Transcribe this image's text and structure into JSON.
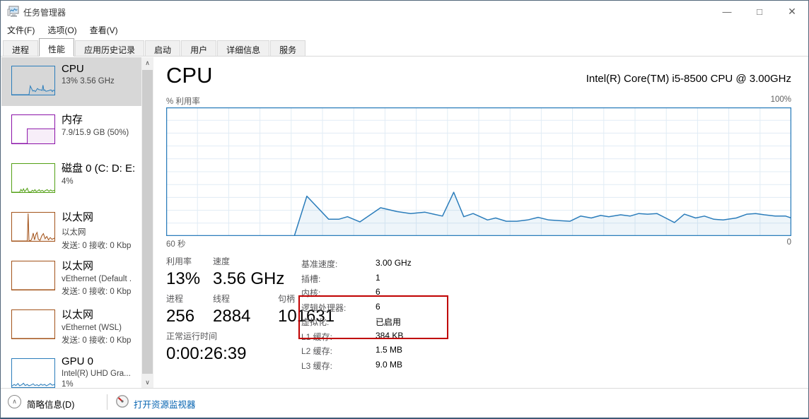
{
  "window": {
    "title": "任务管理器"
  },
  "icons": {
    "minimize": "—",
    "maximize": "□",
    "close": "✕",
    "scroll_up": "∧",
    "scroll_down": "∨",
    "collapse": "∧"
  },
  "menu": {
    "items": [
      {
        "label": "文件(F)"
      },
      {
        "label": "选项(O)"
      },
      {
        "label": "查看(V)"
      }
    ]
  },
  "tabs": {
    "items": [
      {
        "label": "进程",
        "active": false
      },
      {
        "label": "性能",
        "active": true
      },
      {
        "label": "应用历史记录",
        "active": false
      },
      {
        "label": "启动",
        "active": false
      },
      {
        "label": "用户",
        "active": false
      },
      {
        "label": "详细信息",
        "active": false
      },
      {
        "label": "服务",
        "active": false
      }
    ]
  },
  "sidebar": {
    "items": [
      {
        "title": "CPU",
        "lines": [
          "13% 3.56 GHz"
        ],
        "color": "#2b7dbb",
        "selected": true,
        "spark": [
          [
            0,
            0
          ],
          [
            40,
            0
          ],
          [
            43,
            31
          ],
          [
            49,
            13
          ],
          [
            52,
            15
          ],
          [
            55,
            11
          ],
          [
            60,
            22
          ],
          [
            63,
            18
          ],
          [
            68,
            17
          ],
          [
            71,
            15
          ],
          [
            73,
            34
          ],
          [
            75,
            15
          ],
          [
            77,
            17
          ],
          [
            80,
            12
          ],
          [
            83,
            13
          ],
          [
            86,
            14
          ],
          [
            89,
            16
          ],
          [
            92,
            17
          ],
          [
            95,
            11
          ],
          [
            97,
            16
          ],
          [
            100,
            14
          ]
        ]
      },
      {
        "title": "内存",
        "lines": [
          "7.9/15.9 GB (50%)"
        ],
        "color": "#8b12a8",
        "selected": false,
        "spark": [
          [
            0,
            0
          ],
          [
            36,
            0
          ],
          [
            36,
            52
          ],
          [
            100,
            52
          ]
        ]
      },
      {
        "title": "磁盘 0 (C: D: E:",
        "lines": [
          "4%"
        ],
        "color": "#53a015",
        "selected": false,
        "spark": [
          [
            0,
            0
          ],
          [
            18,
            0
          ],
          [
            21,
            10
          ],
          [
            24,
            3
          ],
          [
            27,
            12
          ],
          [
            30,
            2
          ],
          [
            33,
            8
          ],
          [
            36,
            14
          ],
          [
            39,
            2
          ],
          [
            44,
            0
          ],
          [
            48,
            7
          ],
          [
            51,
            3
          ],
          [
            54,
            9
          ],
          [
            57,
            2
          ],
          [
            61,
            5
          ],
          [
            64,
            9
          ],
          [
            67,
            3
          ],
          [
            71,
            7
          ],
          [
            75,
            2
          ],
          [
            79,
            6
          ],
          [
            83,
            9
          ],
          [
            87,
            3
          ],
          [
            91,
            8
          ],
          [
            95,
            4
          ],
          [
            100,
            7
          ]
        ]
      },
      {
        "title": "以太网",
        "lines": [
          "以太网",
          "发送: 0 接收: 0 Kbp"
        ],
        "color": "#a3531a",
        "selected": false,
        "spark": [
          [
            0,
            0
          ],
          [
            36,
            0
          ],
          [
            38,
            97
          ],
          [
            40,
            2
          ],
          [
            44,
            0
          ],
          [
            47,
            10
          ],
          [
            50,
            28
          ],
          [
            53,
            4
          ],
          [
            56,
            22
          ],
          [
            59,
            30
          ],
          [
            62,
            6
          ],
          [
            66,
            2
          ],
          [
            70,
            18
          ],
          [
            74,
            26
          ],
          [
            78,
            8
          ],
          [
            82,
            16
          ],
          [
            86,
            4
          ],
          [
            90,
            12
          ],
          [
            94,
            6
          ],
          [
            100,
            10
          ]
        ]
      },
      {
        "title": "以太网",
        "lines": [
          "vEthernet (Default .",
          "发送: 0 接收: 0 Kbp"
        ],
        "color": "#a3531a",
        "selected": false,
        "spark": [
          [
            0,
            0
          ],
          [
            100,
            0
          ]
        ]
      },
      {
        "title": "以太网",
        "lines": [
          "vEthernet (WSL)",
          "发送: 0 接收: 0 Kbp"
        ],
        "color": "#a3531a",
        "selected": false,
        "spark": [
          [
            0,
            0
          ],
          [
            100,
            0
          ]
        ]
      },
      {
        "title": "GPU 0",
        "lines": [
          "Intel(R) UHD Gra...",
          "1%"
        ],
        "color": "#2b7dbb",
        "selected": false,
        "spark": [
          [
            0,
            4
          ],
          [
            5,
            10
          ],
          [
            9,
            6
          ],
          [
            14,
            13
          ],
          [
            18,
            5
          ],
          [
            23,
            9
          ],
          [
            27,
            14
          ],
          [
            31,
            6
          ],
          [
            36,
            10
          ],
          [
            40,
            5
          ],
          [
            45,
            8
          ],
          [
            50,
            12
          ],
          [
            54,
            6
          ],
          [
            59,
            9
          ],
          [
            63,
            5
          ],
          [
            68,
            11
          ],
          [
            72,
            7
          ],
          [
            77,
            10
          ],
          [
            81,
            5
          ],
          [
            86,
            9
          ],
          [
            90,
            13
          ],
          [
            95,
            7
          ],
          [
            100,
            10
          ]
        ]
      }
    ]
  },
  "main": {
    "title": "CPU",
    "device": "Intel(R) Core(TM) i5-8500 CPU @ 3.00GHz",
    "stats_left": [
      {
        "label": "利用率",
        "value": "13%"
      },
      {
        "label": "速度",
        "value": "3.56 GHz"
      },
      {
        "label": "进程",
        "value": "256"
      },
      {
        "label": "线程",
        "value": "2884"
      },
      {
        "label": "句柄",
        "value": "101631"
      },
      {
        "label": "正常运行时间",
        "value": "0:00:26:39"
      }
    ],
    "stats_right": [
      {
        "label": "基准速度:",
        "value": "3.00 GHz"
      },
      {
        "label": "插槽:",
        "value": "1"
      },
      {
        "label": "内核:",
        "value": "6"
      },
      {
        "label": "逻辑处理器:",
        "value": "6"
      },
      {
        "label": "虚拟化:",
        "value": "已启用"
      },
      {
        "label": "L1 缓存:",
        "value": "384 KB"
      },
      {
        "label": "L2 缓存:",
        "value": "1.5 MB"
      },
      {
        "label": "L3 缓存:",
        "value": "9.0 MB"
      }
    ],
    "annotation_color": "#c00000"
  },
  "footer": {
    "collapse_label": "简略信息(D)",
    "link_label": "打开资源监视器"
  },
  "chart_data": {
    "type": "area",
    "title": "% 利用率",
    "y_max_label": "100%",
    "x_left_label": "60 秒",
    "x_right_label": "0",
    "ylim": [
      0,
      100
    ],
    "x_span_seconds": 60,
    "grid": {
      "v_divisions": 20,
      "h_divisions": 10,
      "color": "#e1ecf5"
    },
    "line_color": "#2b7dbb",
    "fill_color": "rgba(43,125,187,0.08)",
    "border_color": "#2b7dbb",
    "points_pct": [
      [
        0,
        0
      ],
      [
        20.5,
        0
      ],
      [
        22.5,
        31
      ],
      [
        26,
        13
      ],
      [
        27.6,
        13
      ],
      [
        29,
        15
      ],
      [
        31,
        11
      ],
      [
        34.3,
        22
      ],
      [
        36.9,
        19
      ],
      [
        39.1,
        17.5
      ],
      [
        41.4,
        18.5
      ],
      [
        42.8,
        17
      ],
      [
        44.2,
        15.5
      ],
      [
        46,
        34
      ],
      [
        47.6,
        15
      ],
      [
        49.1,
        17.5
      ],
      [
        51.4,
        12.5
      ],
      [
        52.7,
        14
      ],
      [
        54.4,
        11.5
      ],
      [
        56.1,
        11.5
      ],
      [
        57.8,
        12.5
      ],
      [
        59.5,
        14.5
      ],
      [
        61.2,
        12.5
      ],
      [
        62.9,
        12
      ],
      [
        64.6,
        11.5
      ],
      [
        66.3,
        15.5
      ],
      [
        68,
        14
      ],
      [
        69.5,
        16
      ],
      [
        70.8,
        15
      ],
      [
        72.7,
        16.5
      ],
      [
        74.2,
        15.5
      ],
      [
        75.6,
        17.5
      ],
      [
        77,
        17
      ],
      [
        78.5,
        17.5
      ],
      [
        79.9,
        14
      ],
      [
        81.3,
        10.5
      ],
      [
        82.9,
        17
      ],
      [
        84.7,
        14
      ],
      [
        86.1,
        15.5
      ],
      [
        87.6,
        13
      ],
      [
        89.1,
        12.5
      ],
      [
        91.2,
        14
      ],
      [
        92.9,
        17
      ],
      [
        94.3,
        17.5
      ],
      [
        95.7,
        16.5
      ],
      [
        97.4,
        15.5
      ],
      [
        99.1,
        15.5
      ],
      [
        100,
        14
      ]
    ]
  }
}
